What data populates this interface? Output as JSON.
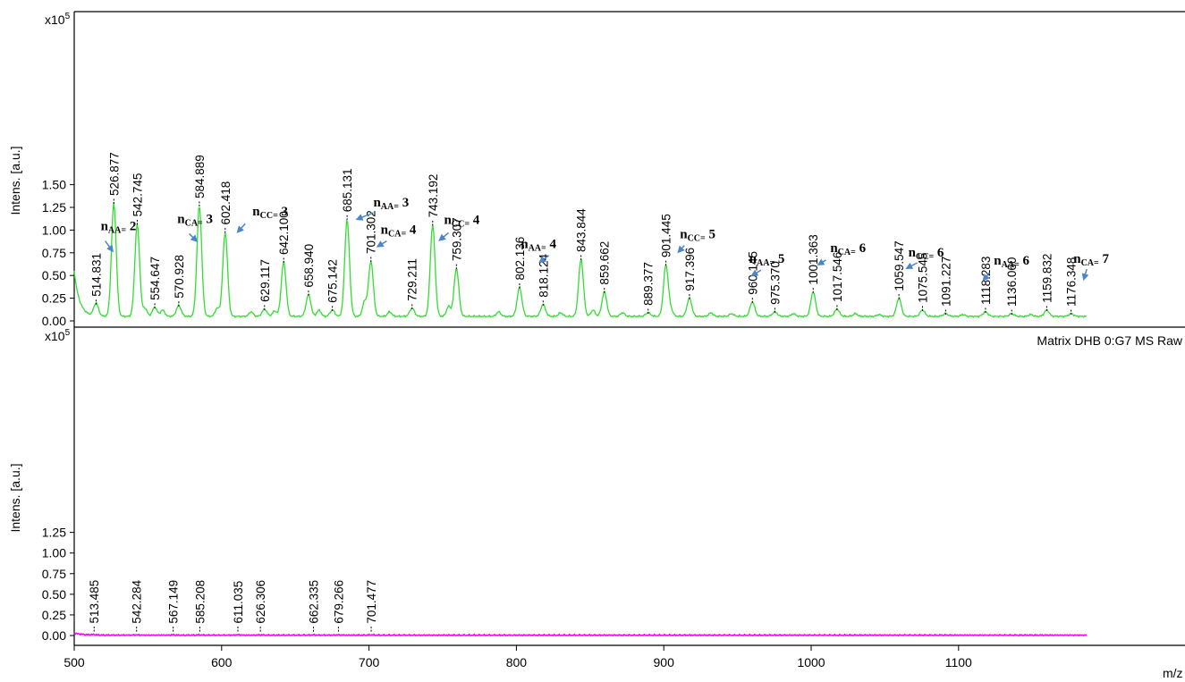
{
  "chart_data": [
    {
      "type": "line",
      "ylabel": "Intens. [a.u.]",
      "y_multiplier": "x10",
      "y_multiplier_exp": "5",
      "xlim": [
        500,
        1187
      ],
      "ylim": [
        0,
        1.62
      ],
      "yticks": [
        "0.00",
        "0.25",
        "0.50",
        "0.75",
        "1.00",
        "1.25",
        "1.50"
      ],
      "color": "#33dd33",
      "peaks": [
        {
          "x": 514.831,
          "y": 0.14,
          "label": "514.831"
        },
        {
          "x": 526.877,
          "y": 1.25,
          "label": "526.877"
        },
        {
          "x": 542.745,
          "y": 1.02,
          "label": "542.745"
        },
        {
          "x": 554.647,
          "y": 0.1,
          "label": "554.647"
        },
        {
          "x": 570.928,
          "y": 0.12,
          "label": "570.928"
        },
        {
          "x": 584.889,
          "y": 1.22,
          "label": "584.889"
        },
        {
          "x": 602.418,
          "y": 0.93,
          "label": "602.418"
        },
        {
          "x": 629.117,
          "y": 0.08,
          "label": "629.117"
        },
        {
          "x": 642.1,
          "y": 0.6,
          "label": "642.100"
        },
        {
          "x": 658.94,
          "y": 0.24,
          "label": "658.940"
        },
        {
          "x": 675.142,
          "y": 0.07,
          "label": "675.142"
        },
        {
          "x": 685.131,
          "y": 1.07,
          "label": "685.131"
        },
        {
          "x": 701.302,
          "y": 0.61,
          "label": "701.302"
        },
        {
          "x": 729.211,
          "y": 0.09,
          "label": "729.211"
        },
        {
          "x": 743.192,
          "y": 1.01,
          "label": "743.192"
        },
        {
          "x": 759.307,
          "y": 0.53,
          "label": "759.307"
        },
        {
          "x": 802.136,
          "y": 0.32,
          "label": "802.136"
        },
        {
          "x": 818.124,
          "y": 0.13,
          "label": "818.124"
        },
        {
          "x": 843.844,
          "y": 0.63,
          "label": "843.844"
        },
        {
          "x": 859.662,
          "y": 0.27,
          "label": "859.662"
        },
        {
          "x": 889.377,
          "y": 0.04,
          "label": "889.377"
        },
        {
          "x": 901.445,
          "y": 0.57,
          "label": "901.445"
        },
        {
          "x": 917.396,
          "y": 0.2,
          "label": "917.396"
        },
        {
          "x": 960.145,
          "y": 0.16,
          "label": "960.145"
        },
        {
          "x": 975.37,
          "y": 0.05,
          "label": "975.370"
        },
        {
          "x": 1001.363,
          "y": 0.27,
          "label": "1001.363"
        },
        {
          "x": 1017.546,
          "y": 0.08,
          "label": "1017.546"
        },
        {
          "x": 1059.547,
          "y": 0.2,
          "label": "1059.547"
        },
        {
          "x": 1075.545,
          "y": 0.07,
          "label": "1075.545"
        },
        {
          "x": 1091.227,
          "y": 0.03,
          "label": "1091.227"
        },
        {
          "x": 1118.283,
          "y": 0.05,
          "label": "1118.283"
        },
        {
          "x": 1136.06,
          "y": 0.03,
          "label": "1136.060"
        },
        {
          "x": 1159.832,
          "y": 0.07,
          "label": "1159.832"
        },
        {
          "x": 1176.348,
          "y": 0.03,
          "label": "1176.348"
        }
      ],
      "annotations": [
        {
          "n": "n",
          "sub": "AA=",
          "count": "2",
          "text_x": 530,
          "text_y": 1.0,
          "arrow_from": [
            521,
            0.88
          ],
          "arrow_to": [
            526,
            0.77
          ]
        },
        {
          "n": "n",
          "sub": "CA=",
          "count": "3",
          "text_x": 582,
          "text_y": 1.08,
          "arrow_from": [
            578,
            0.96
          ],
          "arrow_to": [
            583,
            0.88
          ]
        },
        {
          "n": "n",
          "sub": "CC=",
          "count": "3",
          "text_x": 633,
          "text_y": 1.16,
          "arrow_from": [
            616,
            1.07
          ],
          "arrow_to": [
            611,
            0.98
          ]
        },
        {
          "n": "n",
          "sub": "AA=",
          "count": "3",
          "text_x": 715,
          "text_y": 1.26,
          "arrow_from": [
            703,
            1.19
          ],
          "arrow_to": [
            692,
            1.12
          ]
        },
        {
          "n": "n",
          "sub": "CA=",
          "count": "4",
          "text_x": 720,
          "text_y": 0.96,
          "arrow_from": [
            712,
            0.88
          ],
          "arrow_to": [
            706,
            0.82
          ]
        },
        {
          "n": "n",
          "sub": "CC=",
          "count": "4",
          "text_x": 763,
          "text_y": 1.07,
          "arrow_from": [
            754,
            0.97
          ],
          "arrow_to": [
            748,
            0.89
          ]
        },
        {
          "n": "n",
          "sub": "AA=",
          "count": "4",
          "text_x": 815,
          "text_y": 0.8,
          "arrow_from": [
            822,
            0.72
          ],
          "arrow_to": [
            816,
            0.65
          ]
        },
        {
          "n": "n",
          "sub": "CC=",
          "count": "5",
          "text_x": 923,
          "text_y": 0.91,
          "arrow_from": [
            914,
            0.83
          ],
          "arrow_to": [
            910,
            0.76
          ]
        },
        {
          "n": "n",
          "sub": "AA=",
          "count": "5",
          "text_x": 970,
          "text_y": 0.64,
          "arrow_from": [
            966,
            0.56
          ],
          "arrow_to": [
            960,
            0.5
          ]
        },
        {
          "n": "n",
          "sub": "CA=",
          "count": "6",
          "text_x": 1025,
          "text_y": 0.76,
          "arrow_from": [
            1010,
            0.67
          ],
          "arrow_to": [
            1005,
            0.62
          ]
        },
        {
          "n": "n",
          "sub": "CC=",
          "count": "6",
          "text_x": 1078,
          "text_y": 0.71,
          "arrow_from": [
            1072,
            0.64
          ],
          "arrow_to": [
            1065,
            0.58
          ]
        },
        {
          "n": "n",
          "sub": "AA=",
          "count": "6",
          "text_x": 1136,
          "text_y": 0.62,
          "arrow_from": [
            1121,
            0.53
          ],
          "arrow_to": [
            1117,
            0.45
          ]
        },
        {
          "n": "n",
          "sub": "CA=",
          "count": "7",
          "text_x": 1190,
          "text_y": 0.64,
          "arrow_from": [
            1187,
            0.57
          ],
          "arrow_to": [
            1185,
            0.46
          ]
        }
      ]
    },
    {
      "type": "line",
      "ylabel": "Intens. [a.u.]",
      "y_multiplier": "x10",
      "y_multiplier_exp": "5",
      "xlim": [
        500,
        1187
      ],
      "ylim": [
        0,
        1.47
      ],
      "yticks": [
        "0.00",
        "0.25",
        "0.50",
        "0.75",
        "1.00",
        "1.25"
      ],
      "xticks": [
        "500",
        "600",
        "700",
        "800",
        "900",
        "1000",
        "1100"
      ],
      "xlabel": "m/z",
      "color": "#ff00ff",
      "legend": "Matrix DHB 0:G7 MS Raw",
      "peaks": [
        {
          "x": 513.485,
          "y": 0.005,
          "label": "513.485"
        },
        {
          "x": 542.284,
          "y": 0.004,
          "label": "542.284"
        },
        {
          "x": 567.149,
          "y": 0.004,
          "label": "567.149"
        },
        {
          "x": 585.208,
          "y": 0.004,
          "label": "585.208"
        },
        {
          "x": 611.035,
          "y": 0.005,
          "label": "611.035"
        },
        {
          "x": 626.306,
          "y": 0.004,
          "label": "626.306"
        },
        {
          "x": 662.335,
          "y": 0.004,
          "label": "662.335"
        },
        {
          "x": 679.266,
          "y": 0.004,
          "label": "679.266"
        },
        {
          "x": 701.477,
          "y": 0.004,
          "label": "701.477"
        }
      ]
    }
  ]
}
